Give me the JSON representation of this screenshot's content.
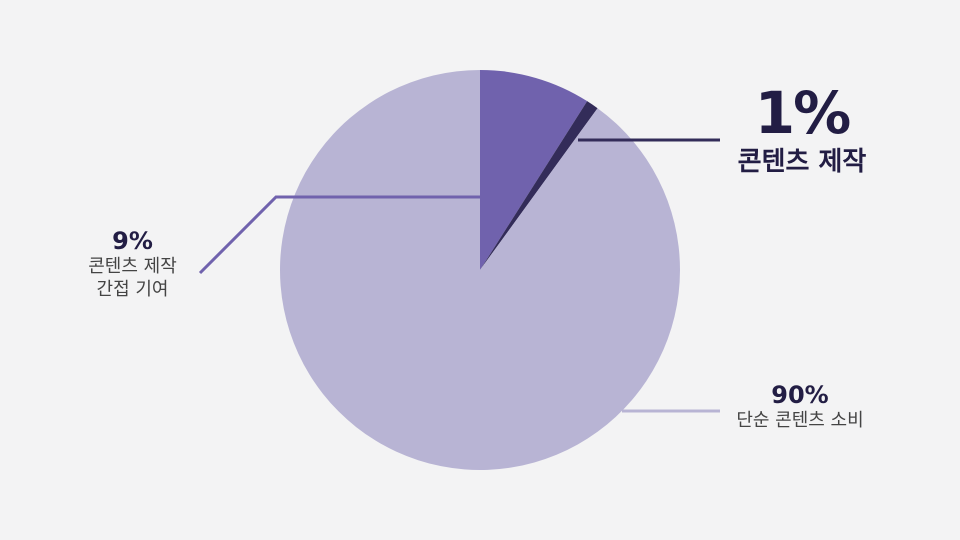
{
  "chart_data": {
    "type": "pie",
    "title": "",
    "slices": [
      {
        "value": 9,
        "percent_label": "9%",
        "label_lines": [
          "콘텐츠 제작",
          "간접 기여"
        ],
        "color": "#7062ad"
      },
      {
        "value": 1,
        "percent_label": "1%",
        "label_lines": [
          "콘텐츠 제작"
        ],
        "color": "#332c59"
      },
      {
        "value": 90,
        "percent_label": "90%",
        "label_lines": [
          "단순 콘텐츠 소비"
        ],
        "color": "#b8b4d4"
      }
    ]
  }
}
